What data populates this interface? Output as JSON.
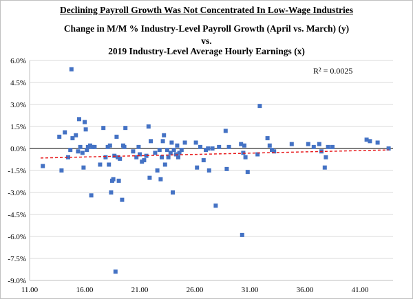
{
  "title": "Declining Payroll Growth Was Not Concentrated In Low-Wage Industries",
  "subtitle_line1": "Change in M/M % Industry-Level Payroll Growth (April vs. March) (y)",
  "subtitle_line2": "vs.",
  "subtitle_line3": "2019 Industry-Level Average Hourly Earnings (x)",
  "r_squared_label": "R² = 0.0025",
  "colors": {
    "points": "#4472c4",
    "trendline": "#e8191b",
    "grid": "#d9d9d9",
    "zero_line": "#000000"
  },
  "chart_data": {
    "type": "scatter",
    "title": "Declining Payroll Growth Was Not Concentrated In Low-Wage Industries",
    "xlabel": "2019 Industry-Level Average Hourly Earnings (x)",
    "ylabel": "Change in M/M % Industry-Level Payroll Growth (April vs. March) (y)",
    "xlim": [
      11,
      44
    ],
    "ylim": [
      -9,
      6
    ],
    "x_ticks": [
      11,
      16,
      21,
      26,
      31,
      36,
      41
    ],
    "x_tick_labels": [
      "11.00",
      "16.00",
      "21.00",
      "26.00",
      "31.00",
      "36.00",
      "41.00"
    ],
    "y_ticks": [
      6,
      4.5,
      3,
      1.5,
      0,
      -1.5,
      -3,
      -4.5,
      -6,
      -7.5,
      -9
    ],
    "y_tick_labels": [
      "6.0%",
      "4.5%",
      "3.0%",
      "1.5%",
      "0.0%",
      "-1.5%",
      "-3.0%",
      "-4.5%",
      "-6.0%",
      "-7.5%",
      "-9.0%"
    ],
    "grid": "horizontal",
    "trendline": {
      "type": "linear",
      "start": [
        12,
        -0.65
      ],
      "end": [
        43.6,
        -0.1
      ],
      "r_squared": 0.0025
    },
    "points": [
      [
        12.2,
        -1.2
      ],
      [
        13.7,
        0.8
      ],
      [
        13.9,
        -1.5
      ],
      [
        14.2,
        1.1
      ],
      [
        14.5,
        -0.6
      ],
      [
        14.8,
        5.4
      ],
      [
        14.9,
        0.7
      ],
      [
        14.7,
        -0.1
      ],
      [
        15.2,
        0.9
      ],
      [
        15.5,
        2.0
      ],
      [
        15.6,
        0.1
      ],
      [
        15.4,
        -0.2
      ],
      [
        15.8,
        -0.3
      ],
      [
        15.9,
        -1.3
      ],
      [
        16.0,
        1.8
      ],
      [
        16.1,
        1.3
      ],
      [
        16.2,
        -0.1
      ],
      [
        16.3,
        0.1
      ],
      [
        16.5,
        0.2
      ],
      [
        16.7,
        0.1
      ],
      [
        16.6,
        -3.2
      ],
      [
        16.9,
        0.1
      ],
      [
        17.4,
        -1.1
      ],
      [
        17.7,
        1.4
      ],
      [
        17.9,
        -0.6
      ],
      [
        18.1,
        0.1
      ],
      [
        18.2,
        -1.1
      ],
      [
        18.4,
        -3.0
      ],
      [
        18.5,
        -2.2
      ],
      [
        18.6,
        -2.1
      ],
      [
        18.3,
        0.2
      ],
      [
        18.7,
        -0.5
      ],
      [
        18.8,
        -8.4
      ],
      [
        18.9,
        0.8
      ],
      [
        19.0,
        -0.6
      ],
      [
        19.1,
        -2.2
      ],
      [
        19.2,
        -0.7
      ],
      [
        19.4,
        -3.5
      ],
      [
        19.5,
        0.2
      ],
      [
        19.6,
        0.1
      ],
      [
        19.7,
        1.4
      ],
      [
        20.4,
        -0.2
      ],
      [
        20.7,
        -0.6
      ],
      [
        20.9,
        0.1
      ],
      [
        21.0,
        -0.4
      ],
      [
        21.2,
        -0.9
      ],
      [
        21.4,
        -0.8
      ],
      [
        21.6,
        -0.5
      ],
      [
        21.8,
        1.5
      ],
      [
        21.9,
        -2.0
      ],
      [
        22.0,
        0.5
      ],
      [
        22.4,
        -0.3
      ],
      [
        22.6,
        -1.5
      ],
      [
        22.8,
        -0.1
      ],
      [
        22.9,
        -2.1
      ],
      [
        23.0,
        -0.6
      ],
      [
        23.1,
        0.5
      ],
      [
        23.2,
        0.9
      ],
      [
        23.3,
        -1.1
      ],
      [
        23.5,
        -0.1
      ],
      [
        23.6,
        -0.6
      ],
      [
        23.8,
        -0.3
      ],
      [
        23.9,
        0.4
      ],
      [
        24.0,
        -3.0
      ],
      [
        24.1,
        -0.1
      ],
      [
        24.3,
        -0.4
      ],
      [
        24.4,
        0.2
      ],
      [
        24.5,
        -0.6
      ],
      [
        24.6,
        -0.3
      ],
      [
        24.8,
        -0.1
      ],
      [
        25.1,
        0.4
      ],
      [
        26.1,
        0.4
      ],
      [
        26.2,
        -1.3
      ],
      [
        26.5,
        0.1
      ],
      [
        26.8,
        -0.8
      ],
      [
        27.0,
        -0.1
      ],
      [
        27.2,
        0.0
      ],
      [
        27.3,
        -1.5
      ],
      [
        27.6,
        0.0
      ],
      [
        27.9,
        -3.9
      ],
      [
        28.2,
        0.1
      ],
      [
        28.8,
        1.2
      ],
      [
        28.9,
        -1.4
      ],
      [
        29.1,
        0.1
      ],
      [
        30.2,
        0.3
      ],
      [
        30.4,
        -0.3
      ],
      [
        30.5,
        0.2
      ],
      [
        30.3,
        -5.9
      ],
      [
        30.6,
        -0.6
      ],
      [
        30.8,
        -1.6
      ],
      [
        31.7,
        -0.4
      ],
      [
        31.9,
        2.9
      ],
      [
        32.6,
        0.7
      ],
      [
        32.8,
        0.2
      ],
      [
        33.0,
        -0.1
      ],
      [
        33.2,
        -0.2
      ],
      [
        34.8,
        0.3
      ],
      [
        36.3,
        0.3
      ],
      [
        36.8,
        0.1
      ],
      [
        37.3,
        0.3
      ],
      [
        37.5,
        -0.2
      ],
      [
        37.8,
        -1.3
      ],
      [
        37.9,
        -0.6
      ],
      [
        38.1,
        0.1
      ],
      [
        38.5,
        0.1
      ],
      [
        41.6,
        0.6
      ],
      [
        41.9,
        0.5
      ],
      [
        42.6,
        0.4
      ],
      [
        43.6,
        0.0
      ]
    ]
  }
}
